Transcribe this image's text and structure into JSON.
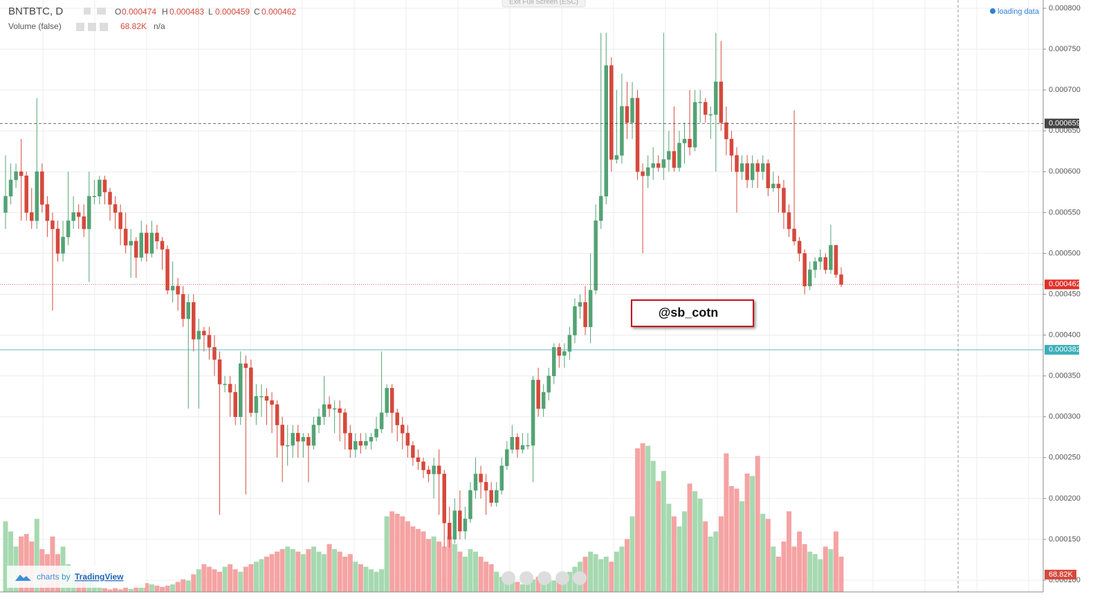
{
  "chart_data": {
    "type": "candlestick",
    "symbol": "BNTBTC, D",
    "ohlc_letters": [
      "O",
      "H",
      "L",
      "C"
    ],
    "volume_title": "Volume (false)",
    "volume_na": "n/a",
    "status": "loading data",
    "exit_button": "Exit Full Screen (ESC)",
    "annotation": "@sb_cotn",
    "brand_prefix": "charts by",
    "brand": "TradingView",
    "up_color": "#53a374",
    "down_color": "#d5493c",
    "vol_up_color": "#a6d9b0",
    "vol_down_color": "#f5a3a3",
    "ylim": [
      0.0001,
      0.0008
    ],
    "yticks": [
      {
        "value": 0.0001,
        "label": "0.000100"
      },
      {
        "value": 0.00015,
        "label": "0.000150"
      },
      {
        "value": 0.0002,
        "label": "0.000200"
      },
      {
        "value": 0.00025,
        "label": "0.000250"
      },
      {
        "value": 0.0003,
        "label": "0.000300"
      },
      {
        "value": 0.00035,
        "label": "0.000350"
      },
      {
        "value": 0.0004,
        "label": "0.000400"
      },
      {
        "value": 0.00045,
        "label": "0.000450"
      },
      {
        "value": 0.0005,
        "label": "0.000500"
      },
      {
        "value": 0.00055,
        "label": "0.000550"
      },
      {
        "value": 0.0006,
        "label": "0.000600"
      },
      {
        "value": 0.00065,
        "label": "0.000650"
      },
      {
        "value": 0.0007,
        "label": "0.000700"
      },
      {
        "value": 0.00075,
        "label": "0.000750"
      },
      {
        "value": 0.0008,
        "label": "0.000800"
      }
    ],
    "grid": true,
    "price_lines": [
      {
        "value": 0.000659,
        "color": "#444444",
        "style": "dashed"
      },
      {
        "value": 0.000462,
        "color": "#e0312b",
        "style": "dotted"
      },
      {
        "value": 0.000382,
        "color": "#3aaeb9",
        "style": "solid"
      }
    ],
    "ohlc": [
      [
        0.00055,
        0.00062,
        0.00053,
        0.00057
      ],
      [
        0.00057,
        0.00061,
        0.00056,
        0.00059
      ],
      [
        0.00059,
        0.00061,
        0.00058,
        0.0006
      ],
      [
        0.0006,
        0.00064,
        0.00054,
        0.000595
      ],
      [
        0.000595,
        0.0006,
        0.00054,
        0.00055
      ],
      [
        0.00055,
        0.00058,
        0.00053,
        0.00054
      ],
      [
        0.00054,
        0.00069,
        0.00053,
        0.0006
      ],
      [
        0.0006,
        0.00061,
        0.00055,
        0.00056
      ],
      [
        0.00056,
        0.00057,
        0.00052,
        0.00054
      ],
      [
        0.00054,
        0.00055,
        0.00043,
        0.00053
      ],
      [
        0.00053,
        0.00054,
        0.00049,
        0.0005
      ],
      [
        0.0005,
        0.00054,
        0.00049,
        0.00052
      ],
      [
        0.00052,
        0.0006,
        0.00051,
        0.00054
      ],
      [
        0.00054,
        0.00057,
        0.00053,
        0.00055
      ],
      [
        0.00055,
        0.00056,
        0.00053,
        0.000545
      ],
      [
        0.000545,
        0.00056,
        0.00052,
        0.00053
      ],
      [
        0.00053,
        0.0006,
        0.000465,
        0.00057
      ],
      [
        0.00057,
        0.00059,
        0.00056,
        0.00057
      ],
      [
        0.00057,
        0.000595,
        0.00056,
        0.00059
      ],
      [
        0.00059,
        0.000595,
        0.00056,
        0.000575
      ],
      [
        0.000575,
        0.00058,
        0.00054,
        0.00056
      ],
      [
        0.00056,
        0.00057,
        0.00053,
        0.00055
      ],
      [
        0.00055,
        0.00056,
        0.00051,
        0.00053
      ],
      [
        0.00053,
        0.00055,
        0.0005,
        0.00051
      ],
      [
        0.00051,
        0.00053,
        0.00047,
        0.000515
      ],
      [
        0.000515,
        0.00052,
        0.00047,
        0.000495
      ],
      [
        0.000495,
        0.00054,
        0.00049,
        0.000525
      ],
      [
        0.000525,
        0.000535,
        0.00049,
        0.0005
      ],
      [
        0.0005,
        0.00054,
        0.000495,
        0.000525
      ],
      [
        0.000525,
        0.000535,
        0.000505,
        0.000515
      ],
      [
        0.000515,
        0.00052,
        0.00048,
        0.000505
      ],
      [
        0.000505,
        0.00051,
        0.00045,
        0.000455
      ],
      [
        0.000455,
        0.00049,
        0.00044,
        0.00046
      ],
      [
        0.00046,
        0.00047,
        0.00043,
        0.00045
      ],
      [
        0.00045,
        0.00046,
        0.00041,
        0.00042
      ],
      [
        0.00042,
        0.00045,
        0.00031,
        0.00044
      ],
      [
        0.00044,
        0.00045,
        0.00038,
        0.000395
      ],
      [
        0.000395,
        0.00042,
        0.00031,
        0.000405
      ],
      [
        0.000405,
        0.00041,
        0.00038,
        0.0004
      ],
      [
        0.0004,
        0.00041,
        0.00037,
        0.000385
      ],
      [
        0.000385,
        0.0004,
        0.00035,
        0.00037
      ],
      [
        0.00037,
        0.00038,
        0.00018,
        0.00034
      ],
      [
        0.00034,
        0.00035,
        0.00033,
        0.00034
      ],
      [
        0.00034,
        0.00035,
        0.0003,
        0.00033
      ],
      [
        0.00033,
        0.00034,
        0.00029,
        0.0003
      ],
      [
        0.0003,
        0.00038,
        0.00029,
        0.000365
      ],
      [
        0.000365,
        0.000375,
        0.000205,
        0.00036
      ],
      [
        0.00036,
        0.00037,
        0.0003,
        0.000305
      ],
      [
        0.000305,
        0.00034,
        0.00029,
        0.000325
      ],
      [
        0.000325,
        0.00034,
        0.0003,
        0.000325
      ],
      [
        0.000325,
        0.000335,
        0.00029,
        0.00032
      ],
      [
        0.00032,
        0.00033,
        0.00028,
        0.000315
      ],
      [
        0.000315,
        0.00032,
        0.00025,
        0.00029
      ],
      [
        0.00029,
        0.0003,
        0.00022,
        0.000265
      ],
      [
        0.000265,
        0.00029,
        0.00024,
        0.000265
      ],
      [
        0.000265,
        0.00029,
        0.00025,
        0.00028
      ],
      [
        0.00028,
        0.00029,
        0.00025,
        0.00027
      ],
      [
        0.00027,
        0.00028,
        0.00025,
        0.000275
      ],
      [
        0.000275,
        0.00028,
        0.00022,
        0.000265
      ],
      [
        0.000265,
        0.0003,
        0.00026,
        0.00029
      ],
      [
        0.00029,
        0.00031,
        0.00028,
        0.0003
      ],
      [
        0.0003,
        0.00035,
        0.00029,
        0.000315
      ],
      [
        0.000315,
        0.000325,
        0.0003,
        0.00031
      ],
      [
        0.00031,
        0.00032,
        0.00028,
        0.00031
      ],
      [
        0.00031,
        0.00032,
        0.00027,
        0.000305
      ],
      [
        0.000305,
        0.00031,
        0.00026,
        0.00028
      ],
      [
        0.00028,
        0.00029,
        0.00025,
        0.00026
      ],
      [
        0.00026,
        0.00028,
        0.00025,
        0.00027
      ],
      [
        0.00027,
        0.00028,
        0.000255,
        0.000265
      ],
      [
        0.000265,
        0.00028,
        0.00026,
        0.00027
      ],
      [
        0.00027,
        0.00028,
        0.00026,
        0.000275
      ],
      [
        0.000275,
        0.0003,
        0.00027,
        0.000285
      ],
      [
        0.000285,
        0.00038,
        0.00028,
        0.000305
      ],
      [
        0.000305,
        0.00034,
        0.0003,
        0.000335
      ],
      [
        0.000335,
        0.00034,
        0.00028,
        0.000305
      ],
      [
        0.000305,
        0.00031,
        0.00027,
        0.00029
      ],
      [
        0.00029,
        0.0003,
        0.00026,
        0.00028
      ],
      [
        0.00028,
        0.00029,
        0.00025,
        0.000265
      ],
      [
        0.000265,
        0.00027,
        0.00024,
        0.00025
      ],
      [
        0.00025,
        0.00026,
        0.000235,
        0.000245
      ],
      [
        0.000245,
        0.00025,
        0.000225,
        0.000235
      ],
      [
        0.000235,
        0.00024,
        0.00022,
        0.00023
      ],
      [
        0.00023,
        0.00025,
        0.0002,
        0.00024
      ],
      [
        0.00024,
        0.00026,
        0.00018,
        0.00023
      ],
      [
        0.00023,
        0.000235,
        0.00014,
        0.00017
      ],
      [
        0.00017,
        0.00019,
        0.00014,
        0.00015
      ],
      [
        0.00015,
        0.0002,
        0.000145,
        0.000185
      ],
      [
        0.000185,
        0.00021,
        0.00015,
        0.00016
      ],
      [
        0.00016,
        0.00019,
        0.00015,
        0.000175
      ],
      [
        0.000175,
        0.00022,
        0.00017,
        0.00021
      ],
      [
        0.00021,
        0.00025,
        0.0002,
        0.00023
      ],
      [
        0.00023,
        0.00024,
        0.0002,
        0.00022
      ],
      [
        0.00022,
        0.00023,
        0.00018,
        0.00021
      ],
      [
        0.00021,
        0.00022,
        0.00019,
        0.000195
      ],
      [
        0.000195,
        0.00022,
        0.00019,
        0.00021
      ],
      [
        0.00021,
        0.00025,
        0.000205,
        0.00024
      ],
      [
        0.00024,
        0.00027,
        0.000235,
        0.00026
      ],
      [
        0.00026,
        0.00029,
        0.000255,
        0.000275
      ],
      [
        0.000275,
        0.00028,
        0.00025,
        0.00026
      ],
      [
        0.00026,
        0.00028,
        0.000255,
        0.000265
      ],
      [
        0.000265,
        0.00028,
        0.00026,
        0.000265
      ],
      [
        0.000265,
        0.00035,
        0.00022,
        0.000345
      ],
      [
        0.000345,
        0.00036,
        0.0003,
        0.00031
      ],
      [
        0.00031,
        0.00034,
        0.0003,
        0.00033
      ],
      [
        0.00033,
        0.00036,
        0.00032,
        0.00035
      ],
      [
        0.00035,
        0.00039,
        0.00034,
        0.000385
      ],
      [
        0.000385,
        0.00039,
        0.00036,
        0.000375
      ],
      [
        0.000375,
        0.00039,
        0.00036,
        0.00038
      ],
      [
        0.00038,
        0.00041,
        0.00037,
        0.0004
      ],
      [
        0.0004,
        0.000445,
        0.00039,
        0.000435
      ],
      [
        0.000435,
        0.00045,
        0.00042,
        0.00044
      ],
      [
        0.00044,
        0.00046,
        0.0004,
        0.00041
      ],
      [
        0.00041,
        0.0005,
        0.00039,
        0.000455
      ],
      [
        0.000455,
        0.00056,
        0.00045,
        0.00054
      ],
      [
        0.00054,
        0.00077,
        0.00053,
        0.00057
      ],
      [
        0.00057,
        0.00077,
        0.00056,
        0.00073
      ],
      [
        0.00073,
        0.00074,
        0.0006,
        0.000615
      ],
      [
        0.000615,
        0.0007,
        0.00061,
        0.00062
      ],
      [
        0.00062,
        0.00072,
        0.00061,
        0.00068
      ],
      [
        0.00068,
        0.00071,
        0.00064,
        0.00066
      ],
      [
        0.00066,
        0.00071,
        0.00064,
        0.00069
      ],
      [
        0.00069,
        0.0007,
        0.00059,
        0.0006
      ],
      [
        0.0006,
        0.00061,
        0.0005,
        0.000595
      ],
      [
        0.000595,
        0.00062,
        0.00058,
        0.000605
      ],
      [
        0.000605,
        0.00063,
        0.00059,
        0.00061
      ],
      [
        0.00061,
        0.00062,
        0.0006,
        0.000605
      ],
      [
        0.000605,
        0.00077,
        0.00059,
        0.000615
      ],
      [
        0.000615,
        0.00065,
        0.0006,
        0.000625
      ],
      [
        0.000625,
        0.00068,
        0.0006,
        0.000605
      ],
      [
        0.000605,
        0.00065,
        0.0006,
        0.000635
      ],
      [
        0.000635,
        0.00066,
        0.00061,
        0.00064
      ],
      [
        0.00064,
        0.0007,
        0.00062,
        0.00063
      ],
      [
        0.00063,
        0.0007,
        0.000625,
        0.000685
      ],
      [
        0.000685,
        0.0007,
        0.00066,
        0.000685
      ],
      [
        0.000685,
        0.00069,
        0.00066,
        0.00067
      ],
      [
        0.00067,
        0.00068,
        0.00064,
        0.00067
      ],
      [
        0.00067,
        0.00077,
        0.0006,
        0.00071
      ],
      [
        0.00071,
        0.00076,
        0.00065,
        0.00066
      ],
      [
        0.00066,
        0.00068,
        0.00062,
        0.00064
      ],
      [
        0.00064,
        0.00065,
        0.0006,
        0.00062
      ],
      [
        0.00062,
        0.00063,
        0.00055,
        0.0006
      ],
      [
        0.0006,
        0.00062,
        0.00059,
        0.00061
      ],
      [
        0.00061,
        0.00062,
        0.00058,
        0.00059
      ],
      [
        0.00059,
        0.00062,
        0.00058,
        0.00061
      ],
      [
        0.00061,
        0.000615,
        0.00058,
        0.0006
      ],
      [
        0.0006,
        0.00062,
        0.00059,
        0.00061
      ],
      [
        0.00061,
        0.000615,
        0.00057,
        0.00058
      ],
      [
        0.00058,
        0.0006,
        0.000575,
        0.000585
      ],
      [
        0.000585,
        0.000595,
        0.00055,
        0.00058
      ],
      [
        0.00058,
        0.00059,
        0.00053,
        0.00055
      ],
      [
        0.00055,
        0.00056,
        0.00052,
        0.00053
      ],
      [
        0.00053,
        0.000675,
        0.00051,
        0.000515
      ],
      [
        0.000515,
        0.00052,
        0.00049,
        0.0005
      ],
      [
        0.0005,
        0.000505,
        0.00045,
        0.00046
      ],
      [
        0.00046,
        0.00049,
        0.000455,
        0.00048
      ],
      [
        0.00048,
        0.000495,
        0.00047,
        0.00049
      ],
      [
        0.00049,
        0.000505,
        0.00048,
        0.000495
      ],
      [
        0.000495,
        0.0005,
        0.000475,
        0.00048
      ],
      [
        0.00048,
        0.000535,
        0.000475,
        0.00051
      ],
      [
        0.00051,
        0.00051,
        0.00047,
        0.000474
      ],
      [
        0.000474,
        0.000483,
        0.000459,
        0.000462
      ]
    ],
    "volume": [
      280000,
      240000,
      180000,
      220000,
      230000,
      200000,
      290000,
      170000,
      150000,
      220000,
      150000,
      180000,
      110000,
      70000,
      40000,
      90000,
      40000,
      30000,
      20000,
      15000,
      10000,
      15000,
      10000,
      20000,
      12000,
      25000,
      30000,
      35000,
      30000,
      25000,
      20000,
      25000,
      30000,
      40000,
      50000,
      45000,
      70000,
      90000,
      110000,
      100000,
      90000,
      80000,
      100000,
      110000,
      90000,
      80000,
      100000,
      110000,
      120000,
      130000,
      140000,
      150000,
      160000,
      170000,
      180000,
      170000,
      160000,
      150000,
      170000,
      180000,
      160000,
      150000,
      190000,
      170000,
      160000,
      140000,
      150000,
      120000,
      110000,
      100000,
      90000,
      80000,
      90000,
      300000,
      320000,
      310000,
      300000,
      280000,
      260000,
      250000,
      240000,
      210000,
      220000,
      200000,
      180000,
      220000,
      190000,
      160000,
      140000,
      170000,
      160000,
      140000,
      120000,
      110000,
      80000,
      60000,
      50000,
      70000,
      40000,
      30000,
      40000,
      50000,
      60000,
      40000,
      50000,
      45000,
      60000,
      70000,
      80000,
      100000,
      120000,
      140000,
      160000,
      150000,
      130000,
      140000,
      120000,
      160000,
      180000,
      210000,
      300000,
      570000,
      590000,
      580000,
      520000,
      440000,
      480000,
      350000,
      300000,
      260000,
      320000,
      430000,
      400000,
      370000,
      280000,
      220000,
      240000,
      300000,
      550000,
      420000,
      410000,
      360000,
      470000,
      460000,
      540000,
      310000,
      290000,
      180000,
      140000,
      200000,
      320000,
      180000,
      240000,
      190000,
      160000,
      150000,
      130000,
      180000,
      170000,
      240000,
      140000,
      68820
    ],
    "volume_last_label": "68.82K"
  }
}
